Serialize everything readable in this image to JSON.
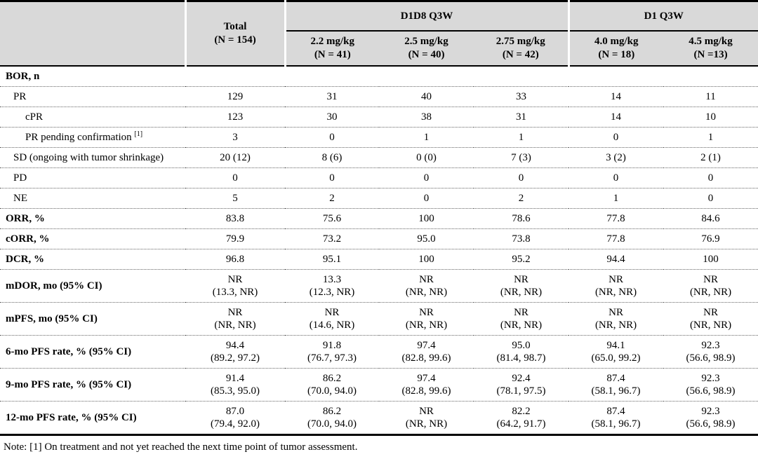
{
  "table": {
    "header": {
      "total": {
        "line1": "Total",
        "line2": "(N = 154)"
      },
      "groups": [
        {
          "label": "D1D8 Q3W",
          "span": 3
        },
        {
          "label": "D1 Q3W",
          "span": 2
        }
      ],
      "columns": [
        {
          "dose": "2.2 mg/kg",
          "n": "(N = 41)"
        },
        {
          "dose": "2.5 mg/kg",
          "n": "(N = 40)"
        },
        {
          "dose": "2.75 mg/kg",
          "n": "(N = 42)"
        },
        {
          "dose": "4.0 mg/kg",
          "n": "(N = 18)"
        },
        {
          "dose": "4.5 mg/kg",
          "n": "(N =13)"
        }
      ]
    },
    "rows": [
      {
        "label": "BOR, n",
        "bold": true,
        "indent": 0,
        "values": [
          "",
          "",
          "",
          "",
          "",
          ""
        ]
      },
      {
        "label": "PR",
        "bold": false,
        "indent": 1,
        "values": [
          "129",
          "31",
          "40",
          "33",
          "14",
          "11"
        ]
      },
      {
        "label": "cPR",
        "bold": false,
        "indent": 2,
        "values": [
          "123",
          "30",
          "38",
          "31",
          "14",
          "10"
        ]
      },
      {
        "label": "PR pending confirmation",
        "sup": "[1]",
        "bold": false,
        "indent": 2,
        "values": [
          "3",
          "0",
          "1",
          "1",
          "0",
          "1"
        ]
      },
      {
        "label": "SD (ongoing with tumor shrinkage)",
        "bold": false,
        "indent": 1,
        "values": [
          "20 (12)",
          "8 (6)",
          "0 (0)",
          "7 (3)",
          "3 (2)",
          "2 (1)"
        ]
      },
      {
        "label": "PD",
        "bold": false,
        "indent": 1,
        "values": [
          "0",
          "0",
          "0",
          "0",
          "0",
          "0"
        ]
      },
      {
        "label": "NE",
        "bold": false,
        "indent": 1,
        "values": [
          "5",
          "2",
          "0",
          "2",
          "1",
          "0"
        ]
      },
      {
        "label": "ORR, %",
        "bold": true,
        "indent": 0,
        "values": [
          "83.8",
          "75.6",
          "100",
          "78.6",
          "77.8",
          "84.6"
        ]
      },
      {
        "label": "cORR, %",
        "bold": true,
        "indent": 0,
        "values": [
          "79.9",
          "73.2",
          "95.0",
          "73.8",
          "77.8",
          "76.9"
        ]
      },
      {
        "label": "DCR, %",
        "bold": true,
        "indent": 0,
        "values": [
          "96.8",
          "95.1",
          "100",
          "95.2",
          "94.4",
          "100"
        ]
      },
      {
        "label": "mDOR, mo (95% CI)",
        "bold": true,
        "indent": 0,
        "values": [
          "NR\n(13.3, NR)",
          "13.3\n(12.3, NR)",
          "NR\n(NR, NR)",
          "NR\n(NR, NR)",
          "NR\n(NR, NR)",
          "NR\n(NR, NR)"
        ]
      },
      {
        "label": "mPFS, mo (95% CI)",
        "bold": true,
        "indent": 0,
        "values": [
          "NR\n(NR, NR)",
          "NR\n(14.6, NR)",
          "NR\n(NR, NR)",
          "NR\n(NR, NR)",
          "NR\n(NR, NR)",
          "NR\n(NR, NR)"
        ]
      },
      {
        "label": "6-mo PFS rate, % (95% CI)",
        "bold": true,
        "indent": 0,
        "values": [
          "94.4\n(89.2, 97.2)",
          "91.8\n(76.7, 97.3)",
          "97.4\n(82.8, 99.6)",
          "95.0\n(81.4, 98.7)",
          "94.1\n(65.0, 99.2)",
          "92.3\n(56.6, 98.9)"
        ]
      },
      {
        "label": "9-mo PFS rate, % (95% CI)",
        "bold": true,
        "indent": 0,
        "values": [
          "91.4\n(85.3, 95.0)",
          "86.2\n(70.0, 94.0)",
          "97.4\n(82.8, 99.6)",
          "92.4\n(78.1, 97.5)",
          "87.4\n(58.1, 96.7)",
          "92.3\n(56.6, 98.9)"
        ]
      },
      {
        "label": "12-mo PFS rate, % (95% CI)",
        "bold": true,
        "indent": 0,
        "values": [
          "87.0\n(79.4, 92.0)",
          "86.2\n(70.0, 94.0)",
          "NR\n(NR, NR)",
          "82.2\n(64.2, 91.7)",
          "87.4\n(58.1, 96.7)",
          "92.3\n(56.6, 98.9)"
        ]
      }
    ],
    "note": "Note: [1] On treatment and not yet reached the next time point of tumor assessment."
  },
  "colors": {
    "header_bg": "#d9d9d9",
    "border": "#000000",
    "row_divider": "#666666"
  }
}
